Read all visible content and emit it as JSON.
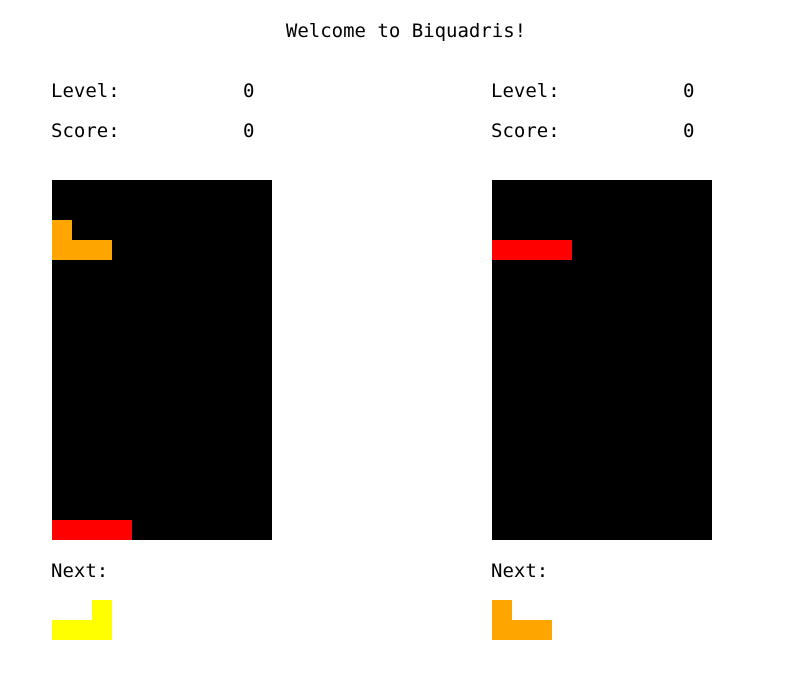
{
  "title": "Welcome to Biquadris!",
  "colors": {
    "board_background": "#000000",
    "orange_block": "#FFA500",
    "red_block": "#FF0000",
    "yellow_block": "#FFFF00"
  },
  "players": [
    {
      "level_label": "Level:",
      "level_value": "0",
      "score_label": "Score:",
      "score_value": "0",
      "next_label": "Next:",
      "board": {
        "columns": 11,
        "rows": 18,
        "cells": [
          {
            "row": 2,
            "col": 0,
            "color": "orange"
          },
          {
            "row": 3,
            "col": 0,
            "color": "orange"
          },
          {
            "row": 3,
            "col": 1,
            "color": "orange"
          },
          {
            "row": 3,
            "col": 2,
            "color": "orange"
          },
          {
            "row": 17,
            "col": 0,
            "color": "red"
          },
          {
            "row": 17,
            "col": 1,
            "color": "red"
          },
          {
            "row": 17,
            "col": 2,
            "color": "red"
          },
          {
            "row": 17,
            "col": 3,
            "color": "red"
          }
        ]
      },
      "next_piece": {
        "name": "yellow-l-block",
        "cells": [
          {
            "row": 0,
            "col": 2,
            "color": "yellow"
          },
          {
            "row": 1,
            "col": 0,
            "color": "yellow"
          },
          {
            "row": 1,
            "col": 1,
            "color": "yellow"
          },
          {
            "row": 1,
            "col": 2,
            "color": "yellow"
          }
        ]
      }
    },
    {
      "level_label": "Level:",
      "level_value": "0",
      "score_label": "Score:",
      "score_value": "0",
      "next_label": "Next:",
      "board": {
        "columns": 11,
        "rows": 18,
        "cells": [
          {
            "row": 3,
            "col": 0,
            "color": "red"
          },
          {
            "row": 3,
            "col": 1,
            "color": "red"
          },
          {
            "row": 3,
            "col": 2,
            "color": "red"
          },
          {
            "row": 3,
            "col": 3,
            "color": "red"
          }
        ]
      },
      "next_piece": {
        "name": "orange-j-block",
        "cells": [
          {
            "row": 0,
            "col": 0,
            "color": "orange"
          },
          {
            "row": 1,
            "col": 0,
            "color": "orange"
          },
          {
            "row": 1,
            "col": 1,
            "color": "orange"
          },
          {
            "row": 1,
            "col": 2,
            "color": "orange"
          }
        ]
      }
    }
  ]
}
